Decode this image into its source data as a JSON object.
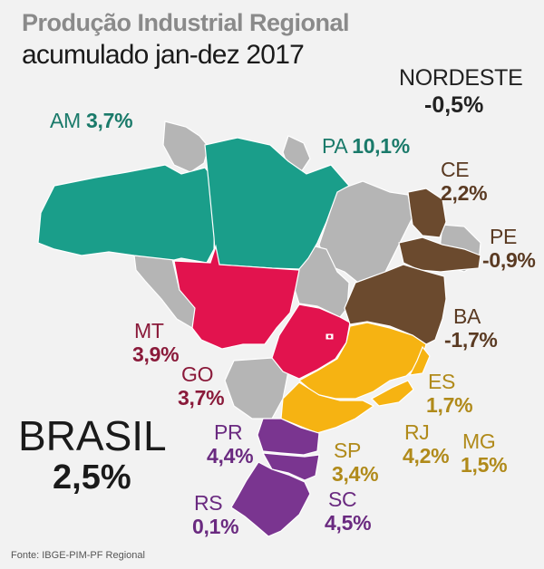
{
  "title": "Produção Industrial Regional",
  "subtitle": "acumulado jan-dez 2017",
  "colors": {
    "north": "#1a9e8a",
    "center_west": "#e2134e",
    "northeast": "#6b4a2e",
    "southeast": "#f6b312",
    "south": "#7a3590",
    "no_data": "#b5b5b5",
    "border": "#ffffff"
  },
  "nordeste": {
    "name": "NORDESTE",
    "value": "-0,5%"
  },
  "brasil": {
    "name": "BRASIL",
    "value": "2,5%"
  },
  "states": {
    "AM": {
      "name": "AM",
      "value": "3,7%",
      "color": "#1a7a6a"
    },
    "PA": {
      "name": "PA",
      "value": "10,1%",
      "color": "#1a7a6a"
    },
    "CE": {
      "name": "CE",
      "value": "2,2%",
      "color": "#5a3a22"
    },
    "PE": {
      "name": "PE",
      "value": "-0,9%",
      "color": "#5a3a22"
    },
    "BA": {
      "name": "BA",
      "value": "-1,7%",
      "color": "#5a3a22"
    },
    "MT": {
      "name": "MT",
      "value": "3,9%",
      "color": "#8a1a3a"
    },
    "GO": {
      "name": "GO",
      "value": "3,7%",
      "color": "#8a1a3a"
    },
    "ES": {
      "name": "ES",
      "value": "1,7%",
      "color": "#b08a1a"
    },
    "RJ": {
      "name": "RJ",
      "value": "4,2%",
      "color": "#b08a1a"
    },
    "MG": {
      "name": "MG",
      "value": "1,5%",
      "color": "#b08a1a"
    },
    "SP": {
      "name": "SP",
      "value": "3,4%",
      "color": "#b08a1a"
    },
    "PR": {
      "name": "PR",
      "value": "4,4%",
      "color": "#6a2a80"
    },
    "SC": {
      "name": "SC",
      "value": "4,5%",
      "color": "#6a2a80"
    },
    "RS": {
      "name": "RS",
      "value": "0,1%",
      "color": "#6a2a80"
    }
  },
  "source": "Fonte: IBGE-PIM-PF Regional"
}
